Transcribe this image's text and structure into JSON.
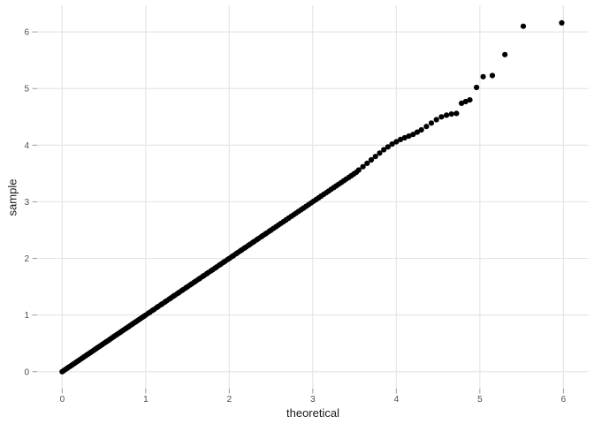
{
  "chart_data": {
    "type": "scatter",
    "title": "",
    "xlabel": "theoretical",
    "ylabel": "sample",
    "x_ticks": [
      0,
      1,
      2,
      3,
      4,
      5,
      6
    ],
    "y_ticks": [
      0,
      1,
      2,
      3,
      4,
      5,
      6
    ],
    "xlim": [
      -0.3,
      6.3
    ],
    "ylim": [
      -0.3,
      6.47
    ],
    "grid": "major-only",
    "legend": "none",
    "point_color": "#000000",
    "grid_color": "#e6e6e6",
    "tick_color": "#999999",
    "tick_label_color": "#4d4d4d",
    "axis_title_color": "#1a1a1a",
    "points": [
      [
        0.0,
        0.0
      ],
      [
        0.02,
        0.02
      ],
      [
        0.04,
        0.04
      ],
      [
        0.06,
        0.06
      ],
      [
        0.08,
        0.08
      ],
      [
        0.1,
        0.1
      ],
      [
        0.12,
        0.12
      ],
      [
        0.14,
        0.14
      ],
      [
        0.16,
        0.16
      ],
      [
        0.18,
        0.18
      ],
      [
        0.2,
        0.2
      ],
      [
        0.22,
        0.22
      ],
      [
        0.24,
        0.24
      ],
      [
        0.26,
        0.26
      ],
      [
        0.28,
        0.28
      ],
      [
        0.3,
        0.3
      ],
      [
        0.32,
        0.32
      ],
      [
        0.34,
        0.34
      ],
      [
        0.36,
        0.36
      ],
      [
        0.38,
        0.38
      ],
      [
        0.4,
        0.4
      ],
      [
        0.42,
        0.42
      ],
      [
        0.44,
        0.44
      ],
      [
        0.46,
        0.46
      ],
      [
        0.48,
        0.48
      ],
      [
        0.5,
        0.5
      ],
      [
        0.52,
        0.52
      ],
      [
        0.54,
        0.54
      ],
      [
        0.56,
        0.56
      ],
      [
        0.58,
        0.58
      ],
      [
        0.6,
        0.6
      ],
      [
        0.62,
        0.62
      ],
      [
        0.64,
        0.64
      ],
      [
        0.66,
        0.66
      ],
      [
        0.68,
        0.68
      ],
      [
        0.7,
        0.7
      ],
      [
        0.72,
        0.72
      ],
      [
        0.74,
        0.74
      ],
      [
        0.76,
        0.76
      ],
      [
        0.78,
        0.78
      ],
      [
        0.8,
        0.8
      ],
      [
        0.82,
        0.82
      ],
      [
        0.84,
        0.84
      ],
      [
        0.86,
        0.86
      ],
      [
        0.88,
        0.88
      ],
      [
        0.9,
        0.9
      ],
      [
        0.92,
        0.92
      ],
      [
        0.94,
        0.94
      ],
      [
        0.96,
        0.96
      ],
      [
        0.98,
        0.98
      ],
      [
        1.0,
        1.0
      ],
      [
        1.03,
        1.03
      ],
      [
        1.05,
        1.05
      ],
      [
        1.08,
        1.08
      ],
      [
        1.1,
        1.1
      ],
      [
        1.13,
        1.13
      ],
      [
        1.15,
        1.15
      ],
      [
        1.18,
        1.18
      ],
      [
        1.2,
        1.2
      ],
      [
        1.23,
        1.23
      ],
      [
        1.25,
        1.25
      ],
      [
        1.28,
        1.28
      ],
      [
        1.3,
        1.3
      ],
      [
        1.33,
        1.33
      ],
      [
        1.35,
        1.35
      ],
      [
        1.38,
        1.38
      ],
      [
        1.4,
        1.4
      ],
      [
        1.43,
        1.43
      ],
      [
        1.45,
        1.45
      ],
      [
        1.48,
        1.48
      ],
      [
        1.5,
        1.5
      ],
      [
        1.53,
        1.53
      ],
      [
        1.55,
        1.55
      ],
      [
        1.58,
        1.58
      ],
      [
        1.6,
        1.6
      ],
      [
        1.63,
        1.63
      ],
      [
        1.65,
        1.65
      ],
      [
        1.68,
        1.68
      ],
      [
        1.7,
        1.7
      ],
      [
        1.73,
        1.73
      ],
      [
        1.75,
        1.75
      ],
      [
        1.78,
        1.78
      ],
      [
        1.8,
        1.8
      ],
      [
        1.83,
        1.83
      ],
      [
        1.85,
        1.85
      ],
      [
        1.88,
        1.88
      ],
      [
        1.9,
        1.9
      ],
      [
        1.93,
        1.93
      ],
      [
        1.95,
        1.95
      ],
      [
        1.98,
        1.98
      ],
      [
        2.0,
        2.0
      ],
      [
        2.03,
        2.03
      ],
      [
        2.05,
        2.05
      ],
      [
        2.08,
        2.08
      ],
      [
        2.1,
        2.1
      ],
      [
        2.13,
        2.13
      ],
      [
        2.15,
        2.15
      ],
      [
        2.18,
        2.18
      ],
      [
        2.2,
        2.2
      ],
      [
        2.23,
        2.23
      ],
      [
        2.25,
        2.25
      ],
      [
        2.28,
        2.28
      ],
      [
        2.3,
        2.3
      ],
      [
        2.33,
        2.33
      ],
      [
        2.35,
        2.35
      ],
      [
        2.38,
        2.38
      ],
      [
        2.4,
        2.4
      ],
      [
        2.43,
        2.43
      ],
      [
        2.45,
        2.45
      ],
      [
        2.48,
        2.48
      ],
      [
        2.5,
        2.5
      ],
      [
        2.53,
        2.53
      ],
      [
        2.56,
        2.56
      ],
      [
        2.59,
        2.59
      ],
      [
        2.62,
        2.62
      ],
      [
        2.65,
        2.65
      ],
      [
        2.68,
        2.68
      ],
      [
        2.71,
        2.71
      ],
      [
        2.74,
        2.74
      ],
      [
        2.77,
        2.77
      ],
      [
        2.8,
        2.8
      ],
      [
        2.83,
        2.83
      ],
      [
        2.86,
        2.86
      ],
      [
        2.89,
        2.89
      ],
      [
        2.92,
        2.92
      ],
      [
        2.95,
        2.95
      ],
      [
        2.98,
        2.98
      ],
      [
        3.01,
        3.01
      ],
      [
        3.04,
        3.04
      ],
      [
        3.07,
        3.07
      ],
      [
        3.1,
        3.1
      ],
      [
        3.13,
        3.13
      ],
      [
        3.16,
        3.16
      ],
      [
        3.19,
        3.19
      ],
      [
        3.22,
        3.22
      ],
      [
        3.25,
        3.25
      ],
      [
        3.28,
        3.28
      ],
      [
        3.31,
        3.31
      ],
      [
        3.34,
        3.34
      ],
      [
        3.37,
        3.37
      ],
      [
        3.4,
        3.4
      ],
      [
        3.43,
        3.43
      ],
      [
        3.46,
        3.46
      ],
      [
        3.49,
        3.49
      ],
      [
        3.52,
        3.52
      ],
      [
        3.55,
        3.56
      ],
      [
        3.6,
        3.62
      ],
      [
        3.65,
        3.68
      ],
      [
        3.7,
        3.74
      ],
      [
        3.75,
        3.8
      ],
      [
        3.8,
        3.86
      ],
      [
        3.85,
        3.92
      ],
      [
        3.9,
        3.97
      ],
      [
        3.95,
        4.02
      ],
      [
        4.0,
        4.06
      ],
      [
        4.05,
        4.1
      ],
      [
        4.1,
        4.13
      ],
      [
        4.15,
        4.16
      ],
      [
        4.2,
        4.19
      ],
      [
        4.25,
        4.23
      ],
      [
        4.3,
        4.27
      ],
      [
        4.36,
        4.33
      ],
      [
        4.42,
        4.39
      ],
      [
        4.48,
        4.45
      ],
      [
        4.54,
        4.5
      ],
      [
        4.6,
        4.53
      ],
      [
        4.66,
        4.55
      ],
      [
        4.72,
        4.56
      ],
      [
        4.78,
        4.74
      ],
      [
        4.83,
        4.77
      ],
      [
        4.88,
        4.8
      ],
      [
        4.96,
        5.02
      ],
      [
        5.04,
        5.21
      ],
      [
        5.15,
        5.23
      ],
      [
        5.3,
        5.6
      ],
      [
        5.52,
        6.1
      ],
      [
        5.98,
        6.16
      ]
    ]
  }
}
